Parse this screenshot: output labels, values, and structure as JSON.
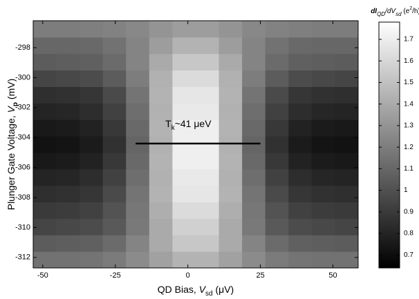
{
  "chart_data": {
    "type": "heatmap",
    "xlabel": [
      "QD Bias,  ",
      "V",
      "sd",
      "  (μV)"
    ],
    "ylabel": [
      "Plunger Gate Voltage, ",
      "V",
      "p",
      "  (mV)"
    ],
    "colorbar_label": [
      "dI",
      "QD",
      "/dV",
      "sd",
      " (e",
      "2",
      "/h)"
    ],
    "x": [
      -49.3,
      -41.3,
      -33.3,
      -25.3,
      -17.3,
      -9.3,
      -1.3,
      6.7,
      14.7,
      22.7,
      30.7,
      38.7,
      46.7,
      54.7
    ],
    "y": [
      -312.15,
      -311.05,
      -309.95,
      -308.85,
      -307.75,
      -306.65,
      -305.55,
      -304.45,
      -303.35,
      -302.25,
      -301.15,
      -300.05,
      -298.95,
      -297.85,
      -296.75
    ],
    "z": [
      [
        1.15,
        1.15,
        1.16,
        1.19,
        1.26,
        1.36,
        1.44,
        1.44,
        1.36,
        1.26,
        1.19,
        1.16,
        1.15,
        1.15
      ],
      [
        1.05,
        1.06,
        1.07,
        1.12,
        1.23,
        1.4,
        1.53,
        1.53,
        1.4,
        1.23,
        1.12,
        1.07,
        1.06,
        1.05
      ],
      [
        0.95,
        0.96,
        0.98,
        1.04,
        1.18,
        1.4,
        1.57,
        1.57,
        1.4,
        1.18,
        1.04,
        0.98,
        0.96,
        0.95
      ],
      [
        0.9,
        0.91,
        0.93,
        1.01,
        1.17,
        1.42,
        1.62,
        1.62,
        1.42,
        1.17,
        1.01,
        0.93,
        0.91,
        0.9
      ],
      [
        0.85,
        0.86,
        0.88,
        0.97,
        1.16,
        1.44,
        1.67,
        1.67,
        1.44,
        1.16,
        0.97,
        0.88,
        0.86,
        0.85
      ],
      [
        0.8,
        0.81,
        0.84,
        0.93,
        1.13,
        1.43,
        1.68,
        1.68,
        1.43,
        1.13,
        0.93,
        0.84,
        0.81,
        0.8
      ],
      [
        0.75,
        0.76,
        0.79,
        0.89,
        1.11,
        1.44,
        1.71,
        1.71,
        1.44,
        1.11,
        0.89,
        0.79,
        0.76,
        0.75
      ],
      [
        0.72,
        0.73,
        0.76,
        0.86,
        1.09,
        1.43,
        1.71,
        1.71,
        1.43,
        1.09,
        0.86,
        0.76,
        0.73,
        0.72
      ],
      [
        0.75,
        0.76,
        0.79,
        0.89,
        1.11,
        1.44,
        1.71,
        1.71,
        1.44,
        1.11,
        0.89,
        0.79,
        0.76,
        0.75
      ],
      [
        0.8,
        0.81,
        0.84,
        0.93,
        1.13,
        1.43,
        1.68,
        1.68,
        1.43,
        1.13,
        0.93,
        0.84,
        0.81,
        0.8
      ],
      [
        0.85,
        0.86,
        0.88,
        0.97,
        1.16,
        1.44,
        1.67,
        1.67,
        1.44,
        1.16,
        0.97,
        0.88,
        0.86,
        0.85
      ],
      [
        0.95,
        0.96,
        0.98,
        1.05,
        1.2,
        1.43,
        1.62,
        1.62,
        1.43,
        1.2,
        1.05,
        0.98,
        0.96,
        0.95
      ],
      [
        1.05,
        1.06,
        1.07,
        1.12,
        1.23,
        1.4,
        1.53,
        1.53,
        1.4,
        1.23,
        1.12,
        1.07,
        1.06,
        1.05
      ],
      [
        1.1,
        1.1,
        1.11,
        1.15,
        1.23,
        1.34,
        1.44,
        1.44,
        1.34,
        1.23,
        1.15,
        1.11,
        1.1,
        1.1
      ],
      [
        1.2,
        1.2,
        1.21,
        1.22,
        1.25,
        1.3,
        1.34,
        1.34,
        1.3,
        1.25,
        1.22,
        1.21,
        1.2,
        1.2
      ]
    ],
    "colormap": "gray",
    "xlim": [
      -53.3,
      58.7
    ],
    "ylim": [
      -312.7,
      -296.2
    ],
    "clim": [
      0.64,
      1.78
    ],
    "xticks": [
      -50,
      -25,
      0,
      25,
      50
    ],
    "yticks": [
      -312,
      -310,
      -308,
      -306,
      -304,
      -302,
      -300,
      -298
    ],
    "cticks": [
      0.7,
      0.8,
      0.9,
      1,
      1.1,
      1.2,
      1.3,
      1.4,
      1.5,
      1.6,
      1.7
    ],
    "annotation": {
      "text": [
        "T",
        "k",
        "~41 μeV"
      ],
      "x": [
        -18,
        25
      ],
      "y": -304.4
    }
  }
}
